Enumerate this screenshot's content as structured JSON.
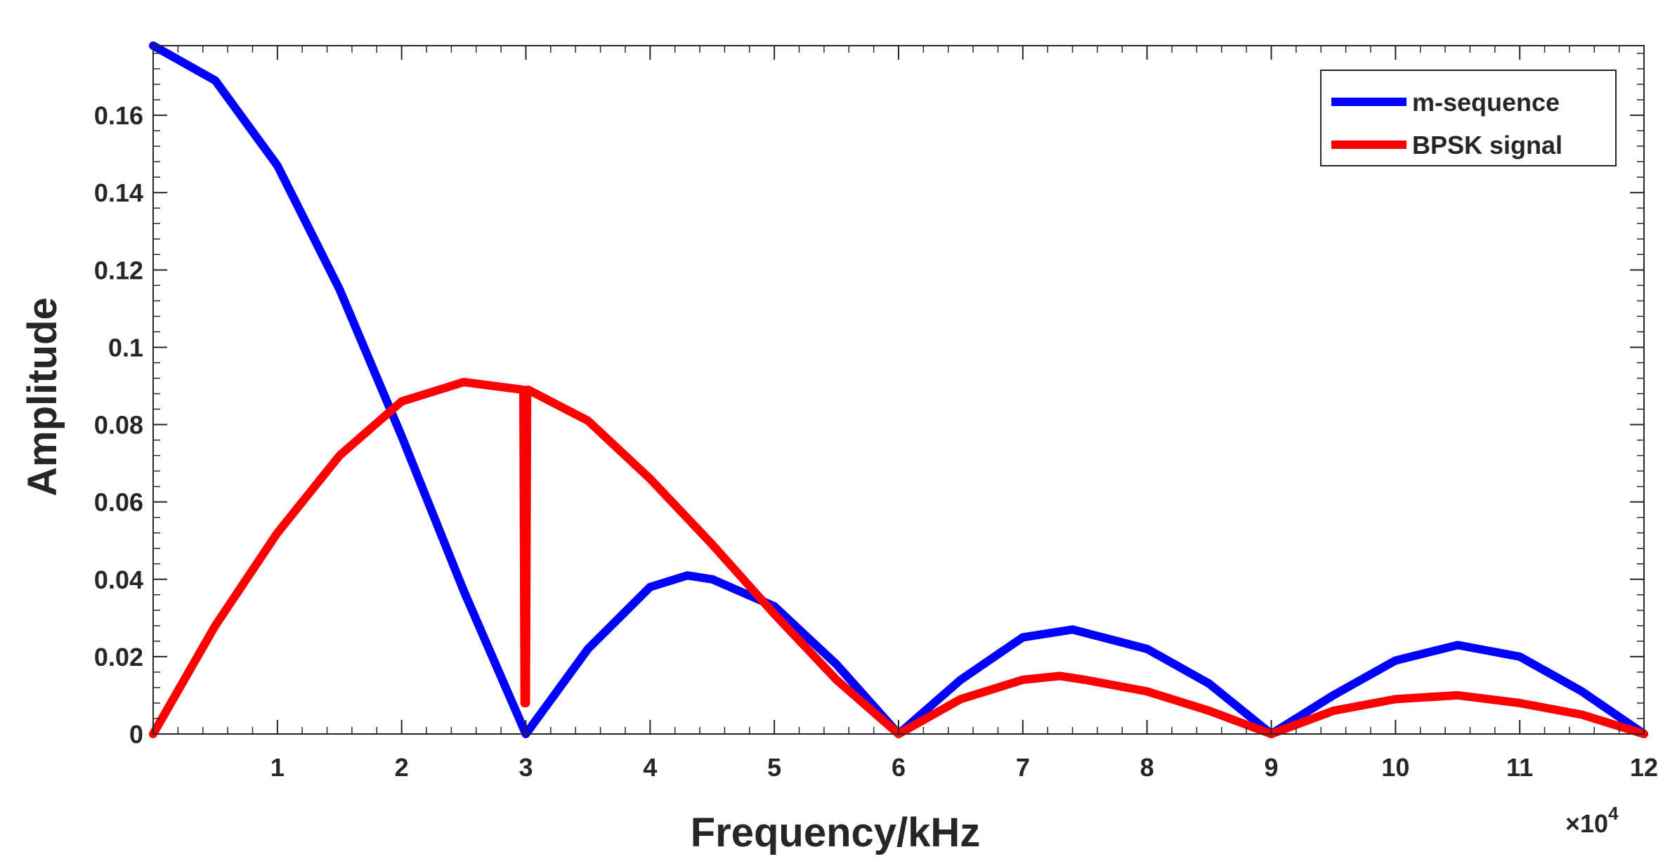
{
  "chart_data": {
    "type": "line",
    "title": "",
    "xlabel": "Frequency/kHz",
    "ylabel": "Amplitude",
    "x_exponent_label": "×10",
    "x_exponent_power": "4",
    "xlim": [
      0,
      12
    ],
    "ylim": [
      0,
      0.178
    ],
    "x_ticks": [
      1,
      2,
      3,
      4,
      5,
      6,
      7,
      8,
      9,
      10,
      11,
      12
    ],
    "x_tick_labels": [
      "1",
      "2",
      "3",
      "4",
      "5",
      "6",
      "7",
      "8",
      "9",
      "10",
      "11",
      "12"
    ],
    "y_ticks": [
      0,
      0.02,
      0.04,
      0.06,
      0.08,
      0.1,
      0.12,
      0.14,
      0.16
    ],
    "y_tick_labels": [
      "0",
      "0.02",
      "0.04",
      "0.06",
      "0.08",
      "0.1",
      "0.12",
      "0.14",
      "0.16"
    ],
    "grid": false,
    "legend_position": "top-right",
    "series": [
      {
        "name": "m-sequence",
        "color": "#0000ff",
        "x": [
          0,
          0.5,
          1,
          1.5,
          2,
          2.5,
          3,
          3.5,
          4,
          4.3,
          4.5,
          5,
          5.5,
          6,
          6.5,
          7,
          7.4,
          8,
          8.5,
          9,
          9.5,
          10,
          10.5,
          11,
          11.5,
          12
        ],
        "y": [
          0.178,
          0.169,
          0.147,
          0.115,
          0.077,
          0.037,
          0.0,
          0.022,
          0.038,
          0.041,
          0.04,
          0.033,
          0.018,
          0.0,
          0.014,
          0.025,
          0.027,
          0.022,
          0.013,
          0.0,
          0.01,
          0.019,
          0.023,
          0.02,
          0.011,
          0.0
        ]
      },
      {
        "name": "BPSK signal",
        "color": "#ff0000",
        "x": [
          0,
          0.5,
          1,
          1.5,
          2,
          2.5,
          2.98,
          2.99,
          3.0,
          3.01,
          3.02,
          3.5,
          4,
          4.5,
          5,
          5.5,
          6,
          6.5,
          7,
          7.3,
          7.5,
          8,
          8.5,
          9,
          9.5,
          10,
          10.5,
          11,
          11.5,
          12
        ],
        "y": [
          0.0,
          0.028,
          0.052,
          0.072,
          0.086,
          0.091,
          0.089,
          0.008,
          0.008,
          0.089,
          0.089,
          0.081,
          0.066,
          0.049,
          0.031,
          0.014,
          0.0,
          0.009,
          0.014,
          0.015,
          0.014,
          0.011,
          0.006,
          0.0,
          0.006,
          0.009,
          0.01,
          0.008,
          0.005,
          0.0
        ]
      }
    ]
  }
}
